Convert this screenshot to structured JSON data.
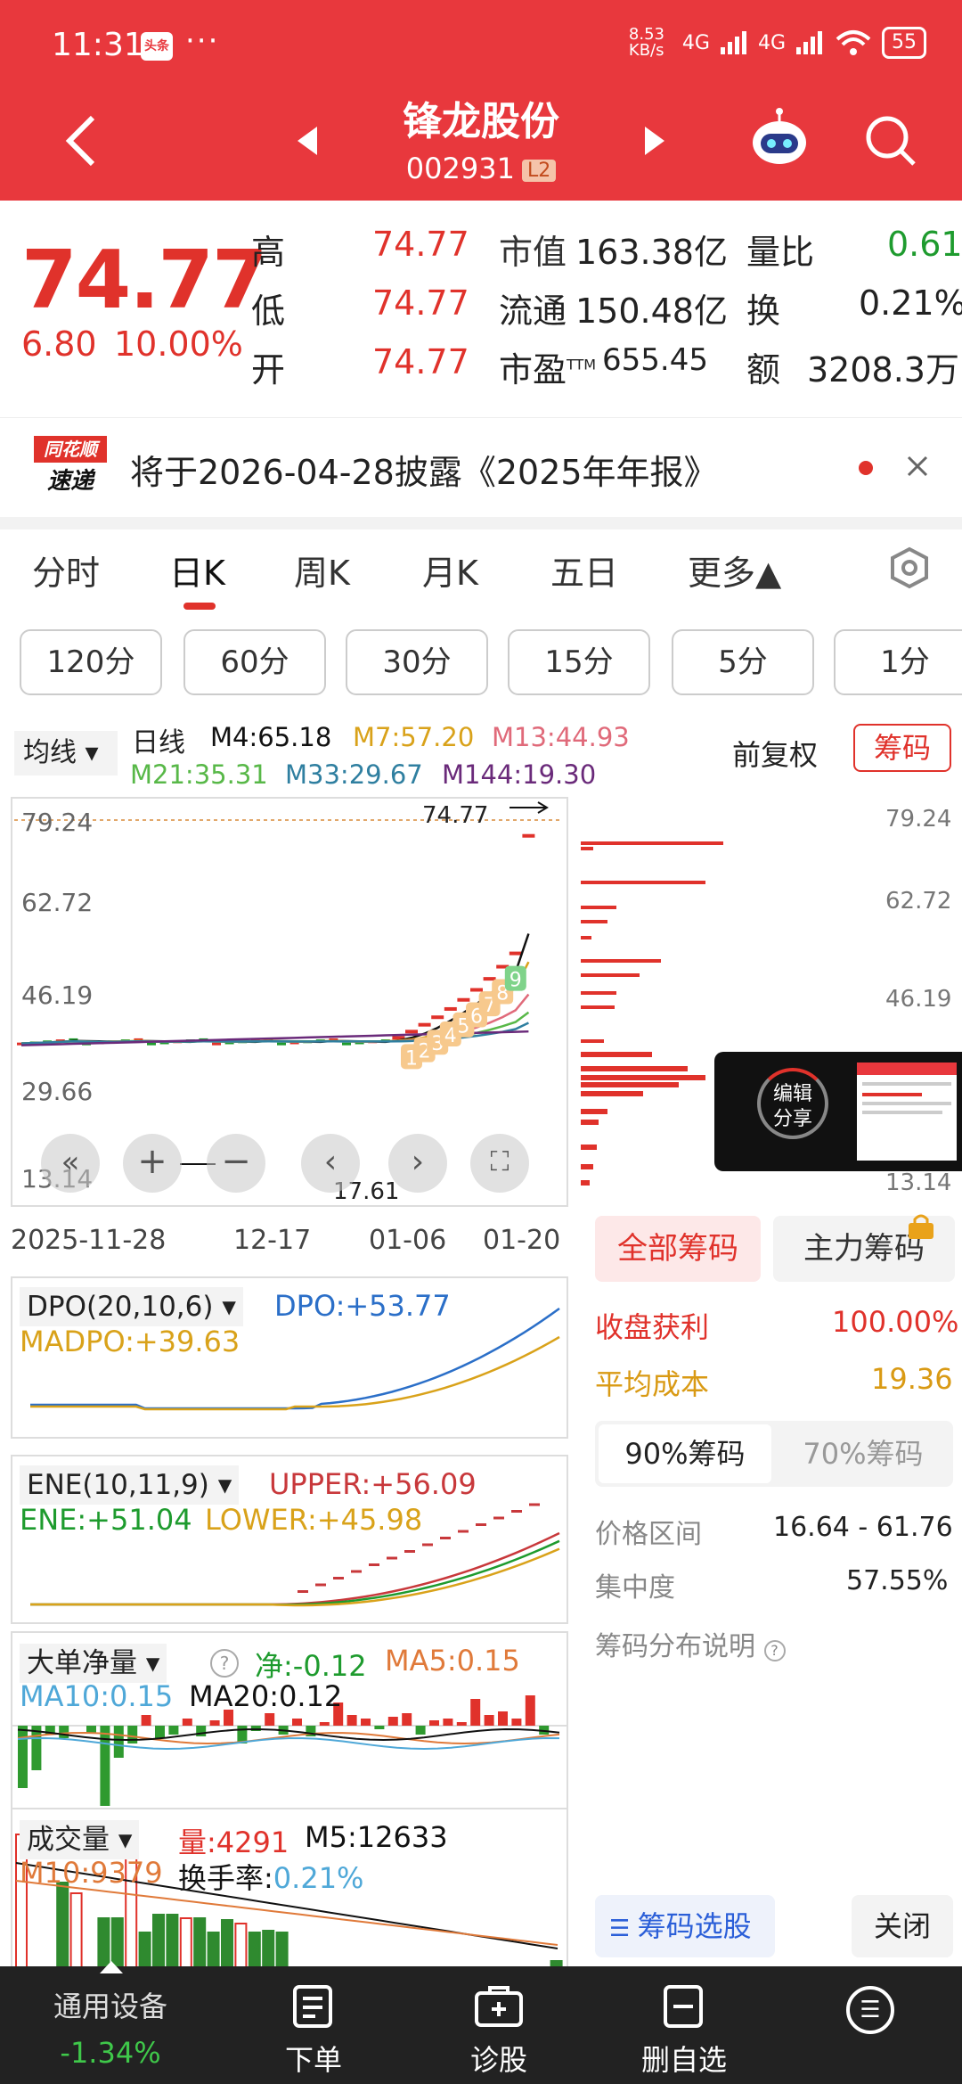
{
  "status": {
    "time": "11:31",
    "badge": "头条",
    "dots": "···",
    "speed": "8.53 KB/s",
    "net1": "4G",
    "net2": "4G",
    "battery": "55"
  },
  "header": {
    "title": "锋龙股份",
    "code": "002931",
    "level": "L2"
  },
  "quote": {
    "price": "74.77",
    "change": "6.80",
    "change_pct": "10.00%",
    "rows": [
      {
        "label": "高",
        "value": "74.77",
        "k1": "市值",
        "v1": "163.38亿",
        "k2": "量比",
        "v2": "0.61"
      },
      {
        "label": "低",
        "value": "74.77",
        "k1": "流通",
        "v1": "150.48亿",
        "k2": "换",
        "v2": "0.21%"
      },
      {
        "label": "开",
        "value": "74.77",
        "k1": "市盈",
        "k1_sup": "TTM",
        "v1": "655.45",
        "k2": "额",
        "v2": "3208.3万"
      }
    ]
  },
  "news": {
    "logo_top": "同花顺",
    "logo_bottom": "速递",
    "text": "将于2026-04-28披露《2025年年报》"
  },
  "tabs": [
    "分时",
    "日K",
    "周K",
    "月K",
    "五日",
    "更多▲"
  ],
  "periods": [
    "120分",
    "60分",
    "30分",
    "15分",
    "5分",
    "1分"
  ],
  "ma": {
    "selector": "均线",
    "label": "日线",
    "m4": "M4:65.18",
    "m7": "M7:57.20",
    "m13": "M13:44.93",
    "m21": "M21:35.31",
    "m33": "M33:29.67",
    "m144": "M144:19.30",
    "fq": "前复权",
    "chips": "筹码"
  },
  "kline": {
    "y_ticks": [
      "79.24",
      "62.72",
      "46.19",
      "29.66",
      "13.14"
    ],
    "x_ticks": [
      "2025-11-28",
      "12-17",
      "01-06",
      "01-20"
    ],
    "high_label": "74.77",
    "low_label": "17.61",
    "seq": [
      "1",
      "2",
      "3",
      "4",
      "5",
      "6",
      "7",
      "8",
      "9"
    ],
    "colors": {
      "up": "#e0322b",
      "m4": "#111111",
      "m7": "#d9a21a",
      "m13": "#e06a7a",
      "m21": "#58b848",
      "m33": "#2f7fa0",
      "m144": "#6a2a7a"
    }
  },
  "overlay": {
    "text1": "编辑",
    "text2": "分享"
  },
  "chips_panel": {
    "tab_all": "全部筹码",
    "tab_main": "主力筹码",
    "profit_label": "收盘获利",
    "profit": "100.00%",
    "cost_label": "平均成本",
    "cost": "19.36",
    "tab90": "90%筹码",
    "tab70": "70%筹码",
    "range_label": "价格区间",
    "range": "16.64 - 61.76",
    "conc_label": "集中度",
    "conc": "57.55%",
    "explain": "筹码分布说明",
    "select_btn": "筹码选股",
    "close_btn": "关闭"
  },
  "dpo": {
    "name": "DPO(20,10,6)",
    "dpo": "DPO:+53.77",
    "madpo": "MADPO:+39.63"
  },
  "ene": {
    "name": "ENE(10,11,9)",
    "upper": "UPPER:+56.09",
    "ene": "ENE:+51.04",
    "lower": "LOWER:+45.98"
  },
  "big": {
    "name": "大单净量",
    "net": "净:-0.12",
    "ma5": "MA5:0.15",
    "ma10": "MA10:0.15",
    "ma20": "MA20:0.12"
  },
  "vol": {
    "name": "成交量",
    "vol": "量:4291",
    "m5": "M5:12633",
    "m10": "M10:9379",
    "turn_label": "换手率:",
    "turn": "0.21%"
  },
  "nav": {
    "device": "通用设备",
    "device_pct": "-1.34%",
    "order": "下单",
    "diag": "诊股",
    "del": "删自选",
    "more": "☰"
  }
}
